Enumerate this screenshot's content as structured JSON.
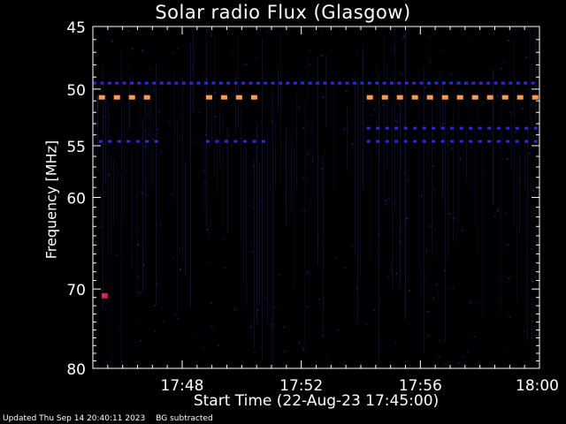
{
  "chart_data": {
    "type": "heatmap",
    "title": "Solar radio Flux (Glasgow)",
    "xlabel": "Start Time (22-Aug-23 17:45:00)",
    "ylabel": "Frequency [MHz]",
    "x_range_minutes": [
      0,
      15
    ],
    "x_tick_labels": [
      "17:48",
      "17:52",
      "17:56",
      "18:00"
    ],
    "x_ticks_minutes": [
      3,
      7,
      11,
      15
    ],
    "y_range_mhz": [
      45,
      80
    ],
    "y_scale": "log",
    "y_inverted": true,
    "y_tick_labels": [
      "45",
      "50",
      "55",
      "60",
      "70",
      "80"
    ],
    "y_ticks_mhz": [
      45,
      50,
      55,
      60,
      70,
      80
    ],
    "background_subtracted": true,
    "emission_bands": [
      {
        "frequency_mhz": 49.5,
        "intensity": "medium",
        "color": "#2a2ae8",
        "time_segments_min": [
          [
            0,
            15
          ]
        ]
      },
      {
        "frequency_mhz": 50.7,
        "intensity": "high",
        "color": "#ff9a4a",
        "time_segments_min": [
          [
            0.2,
            2.2
          ],
          [
            3.8,
            5.8
          ],
          [
            9.2,
            15
          ]
        ]
      },
      {
        "frequency_mhz": 53.4,
        "intensity": "medium",
        "color": "#2a2ae8",
        "time_segments_min": [
          [
            9.2,
            15
          ]
        ]
      },
      {
        "frequency_mhz": 54.6,
        "intensity": "medium",
        "color": "#2a2ae8",
        "time_segments_min": [
          [
            0.2,
            2.2
          ],
          [
            3.8,
            5.8
          ],
          [
            9.2,
            15
          ]
        ]
      },
      {
        "frequency_mhz": 70.8,
        "intensity": "spot",
        "color": "#d81b5a",
        "time_segments_min": [
          [
            0.3,
            0.5
          ]
        ]
      }
    ],
    "colors": {
      "background": "#000000",
      "axes": "#ffffff",
      "noise": "#14145a"
    }
  },
  "footer": {
    "updated": "Updated Thu Sep 14 20:40:11 2023",
    "note": "BG subtracted"
  }
}
